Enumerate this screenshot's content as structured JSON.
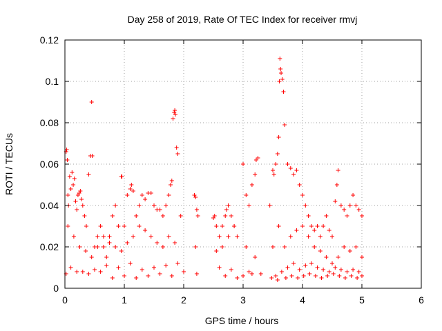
{
  "chart_data": {
    "type": "scatter",
    "title": "Day 258 of 2019, Rate Of TEC Index for receiver rmvj",
    "xlabel": "GPS time / hours",
    "ylabel": "ROTI / TECUs",
    "xlim": [
      0,
      6
    ],
    "ylim": [
      0,
      0.12
    ],
    "x_ticks": [
      "0",
      "1",
      "2",
      "3",
      "4",
      "5",
      "6"
    ],
    "y_ticks": [
      "0",
      "0.02",
      "0.04",
      "0.06",
      "0.08",
      "0.1",
      "0.12"
    ],
    "grid": true,
    "marker": "+",
    "color": "#ff0000",
    "series": [
      {
        "name": "ROTI",
        "x": [
          0.02,
          0.03,
          0.04,
          0.05,
          0.06,
          0.08,
          0.1,
          0.12,
          0.14,
          0.16,
          0.18,
          0.2,
          0.22,
          0.24,
          0.26,
          0.28,
          0.3,
          0.33,
          0.36,
          0.4,
          0.43,
          0.45,
          0.46,
          0.5,
          0.55,
          0.6,
          0.65,
          0.7,
          0.75,
          0.8,
          0.85,
          0.9,
          0.95,
          0.96,
          1.0,
          1.05,
          1.1,
          1.12,
          1.15,
          1.2,
          1.25,
          1.3,
          1.35,
          1.4,
          1.45,
          1.5,
          1.55,
          1.6,
          1.65,
          1.7,
          1.75,
          1.78,
          1.8,
          1.82,
          1.84,
          1.85,
          1.86,
          1.88,
          1.9,
          1.95,
          2.18,
          2.2,
          2.22,
          2.24,
          2.5,
          2.52,
          2.55,
          2.6,
          2.65,
          2.7,
          2.72,
          2.75,
          2.8,
          2.85,
          2.9,
          3.0,
          3.05,
          3.1,
          3.15,
          3.2,
          3.22,
          3.25,
          3.45,
          3.5,
          3.52,
          3.55,
          3.58,
          3.6,
          3.61,
          3.62,
          3.63,
          3.64,
          3.66,
          3.68,
          3.7,
          3.75,
          3.8,
          3.85,
          3.9,
          3.95,
          4.0,
          4.05,
          4.1,
          4.15,
          4.2,
          4.25,
          4.3,
          4.35,
          4.4,
          4.45,
          4.5,
          4.55,
          4.58,
          4.6,
          4.65,
          4.7,
          4.75,
          4.8,
          4.85,
          4.9,
          4.95,
          5.0,
          0.05,
          0.15,
          0.25,
          0.35,
          0.45,
          0.55,
          0.65,
          0.75,
          0.85,
          0.95,
          1.05,
          1.15,
          1.25,
          1.35,
          1.45,
          1.55,
          1.65,
          1.75,
          1.85,
          2.2,
          2.55,
          2.65,
          2.75,
          2.85,
          3.05,
          3.2,
          3.5,
          3.6,
          3.7,
          3.8,
          3.9,
          4.0,
          4.1,
          4.2,
          4.3,
          4.4,
          4.5,
          4.6,
          4.7,
          4.8,
          4.9,
          5.0,
          0.1,
          0.3,
          0.5,
          0.7,
          0.9,
          1.1,
          1.3,
          1.5,
          1.7,
          1.9,
          2.6,
          2.8,
          3.1,
          3.3,
          3.55,
          3.65,
          3.75,
          3.85,
          3.95,
          4.05,
          4.15,
          4.25,
          4.35,
          4.45,
          4.55,
          4.65,
          4.75,
          4.85,
          4.95,
          0.02,
          0.2,
          0.4,
          0.6,
          0.8,
          1.0,
          1.2,
          1.4,
          1.6,
          1.8,
          2.0,
          2.22,
          2.7,
          2.9,
          3.0,
          3.15,
          3.48,
          3.58,
          3.72,
          3.82,
          3.92,
          4.02,
          4.12,
          4.22,
          4.32,
          4.42,
          4.52,
          4.62,
          4.72,
          4.82,
          4.92,
          5.0
        ],
        "y": [
          0.066,
          0.067,
          0.062,
          0.045,
          0.04,
          0.054,
          0.048,
          0.056,
          0.05,
          0.053,
          0.042,
          0.038,
          0.045,
          0.046,
          0.047,
          0.043,
          0.04,
          0.035,
          0.03,
          0.055,
          0.064,
          0.09,
          0.064,
          0.02,
          0.025,
          0.03,
          0.02,
          0.015,
          0.025,
          0.035,
          0.04,
          0.03,
          0.054,
          0.054,
          0.03,
          0.045,
          0.048,
          0.05,
          0.047,
          0.035,
          0.04,
          0.045,
          0.043,
          0.046,
          0.046,
          0.04,
          0.038,
          0.038,
          0.035,
          0.04,
          0.045,
          0.05,
          0.052,
          0.082,
          0.085,
          0.086,
          0.084,
          0.068,
          0.065,
          0.035,
          0.045,
          0.044,
          0.038,
          0.035,
          0.034,
          0.035,
          0.03,
          0.025,
          0.03,
          0.035,
          0.038,
          0.04,
          0.035,
          0.03,
          0.025,
          0.06,
          0.045,
          0.04,
          0.05,
          0.055,
          0.062,
          0.063,
          0.04,
          0.057,
          0.055,
          0.06,
          0.065,
          0.073,
          0.1,
          0.111,
          0.106,
          0.104,
          0.101,
          0.095,
          0.079,
          0.06,
          0.058,
          0.055,
          0.057,
          0.05,
          0.045,
          0.04,
          0.035,
          0.03,
          0.028,
          0.03,
          0.025,
          0.03,
          0.035,
          0.028,
          0.025,
          0.042,
          0.05,
          0.057,
          0.04,
          0.038,
          0.035,
          0.04,
          0.045,
          0.04,
          0.038,
          0.035,
          0.03,
          0.025,
          0.02,
          0.018,
          0.015,
          0.02,
          0.025,
          0.022,
          0.02,
          0.018,
          0.022,
          0.025,
          0.03,
          0.028,
          0.025,
          0.022,
          0.02,
          0.025,
          0.022,
          0.02,
          0.018,
          0.02,
          0.025,
          0.03,
          0.02,
          0.015,
          0.02,
          0.03,
          0.02,
          0.025,
          0.028,
          0.03,
          0.025,
          0.02,
          0.018,
          0.015,
          0.012,
          0.015,
          0.02,
          0.018,
          0.02,
          0.015,
          0.01,
          0.008,
          0.009,
          0.011,
          0.01,
          0.012,
          0.009,
          0.01,
          0.011,
          0.012,
          0.01,
          0.009,
          0.008,
          0.007,
          0.006,
          0.008,
          0.01,
          0.012,
          0.009,
          0.011,
          0.012,
          0.01,
          0.009,
          0.008,
          0.01,
          0.009,
          0.008,
          0.009,
          0.008,
          0.007,
          0.008,
          0.007,
          0.008,
          0.005,
          0.006,
          0.005,
          0.006,
          0.007,
          0.006,
          0.008,
          0.007,
          0.006,
          0.005,
          0.006,
          0.007,
          0.005,
          0.004,
          0.005,
          0.006,
          0.005,
          0.006,
          0.007,
          0.006,
          0.005,
          0.006,
          0.007,
          0.006,
          0.005,
          0.006,
          0.005,
          0.006
        ]
      }
    ]
  }
}
